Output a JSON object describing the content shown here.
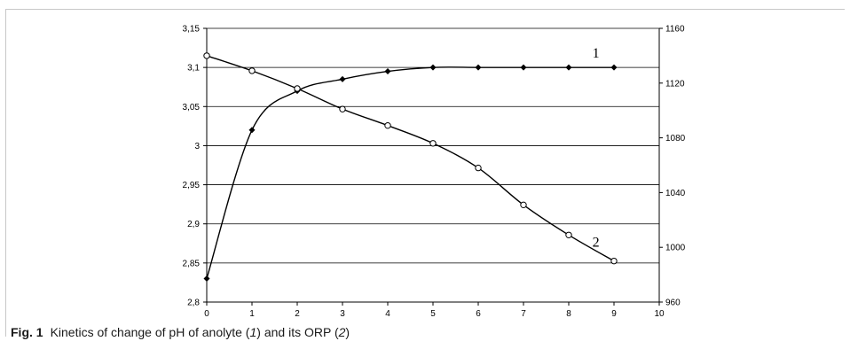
{
  "caption": {
    "label": "Fig. 1",
    "text_pre": "Kinetics of change of pH of anolyte (",
    "ref1": "1",
    "text_mid": ") and its ORP (",
    "ref2": "2",
    "text_post": ")"
  },
  "chart_data": {
    "type": "line",
    "title": "",
    "xlabel": "",
    "ylabel": "",
    "x_ticks": [
      "0",
      "1",
      "2",
      "3",
      "4",
      "5",
      "6",
      "7",
      "8",
      "9",
      "10"
    ],
    "xlim": [
      0,
      10
    ],
    "y_left_ticks": [
      "2,8",
      "2,85",
      "2,9",
      "2,95",
      "3",
      "3,05",
      "3,1",
      "3,15"
    ],
    "y_left_lim": [
      2.8,
      3.15
    ],
    "y_right_ticks": [
      "960",
      "1000",
      "1040",
      "1080",
      "1120",
      "1160"
    ],
    "y_right_lim": [
      960,
      1160
    ],
    "grid": "horizontal",
    "series": [
      {
        "label": "1",
        "axis": "left",
        "marker": "diamond",
        "x": [
          0,
          1,
          2,
          3,
          4,
          5,
          6,
          7,
          8,
          9
        ],
        "y": [
          2.83,
          3.02,
          3.07,
          3.085,
          3.095,
          3.1,
          3.1,
          3.1,
          3.1,
          3.1
        ]
      },
      {
        "label": "2",
        "axis": "right",
        "marker": "circle",
        "x": [
          0,
          1,
          2,
          3,
          4,
          5,
          6,
          7,
          8,
          9
        ],
        "y": [
          1140,
          1129,
          1116,
          1101,
          1089,
          1076,
          1058,
          1031,
          1009,
          990
        ]
      }
    ]
  }
}
